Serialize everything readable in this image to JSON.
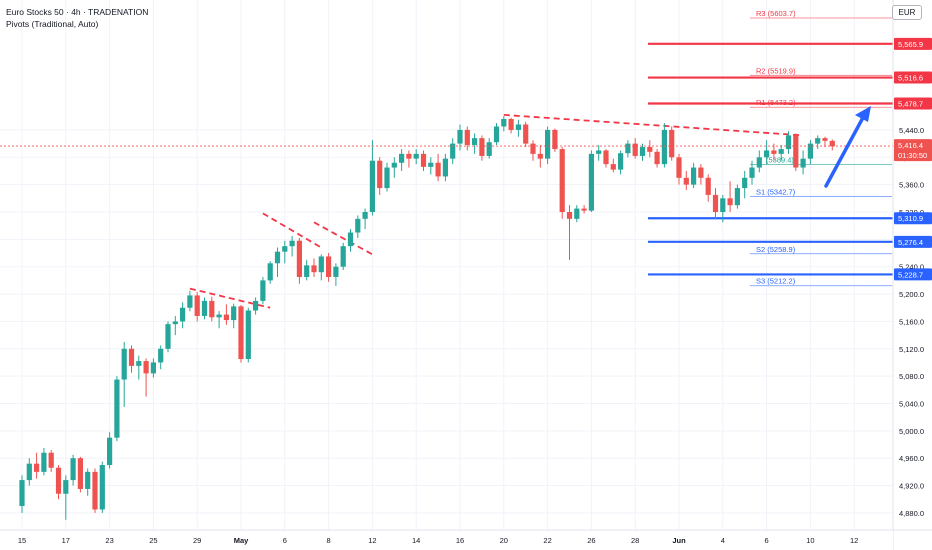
{
  "legend": {
    "symbol": "Euro Stocks 50 · 4h · TRADENATION",
    "indicator": "Pivots (Traditional, Auto)"
  },
  "currency": "EUR",
  "colors": {
    "up": "#26a69a",
    "down": "#ef5350",
    "resistance": "#f23645",
    "support": "#2962ff",
    "pivot_grey": "#9598a1",
    "price_line": "#ef5350",
    "arrow": "#2962ff",
    "axis_text": "#131722"
  },
  "chart_data": {
    "type": "candlestick",
    "ylim": [
      4855,
      5630
    ],
    "y_ticks": [
      "4,880.0",
      "4,920.0",
      "4,960.0",
      "5,000.0",
      "5,040.0",
      "5,080.0",
      "5,120.0",
      "5,160.0",
      "5,200.0",
      "5,240.0",
      "5,280.0",
      "5,320.0",
      "5,360.0",
      "5,400.0",
      "5,440.0"
    ],
    "y_tick_values": [
      4880,
      4920,
      4960,
      5000,
      5040,
      5080,
      5120,
      5160,
      5200,
      5240,
      5280,
      5320,
      5360,
      5400,
      5440
    ],
    "x_ticks": [
      {
        "label": "15",
        "i": 0
      },
      {
        "label": "17",
        "i": 6
      },
      {
        "label": "23",
        "i": 12
      },
      {
        "label": "25",
        "i": 18
      },
      {
        "label": "29",
        "i": 24
      },
      {
        "label": "May",
        "i": 30
      },
      {
        "label": "6",
        "i": 36
      },
      {
        "label": "8",
        "i": 42
      },
      {
        "label": "12",
        "i": 48
      },
      {
        "label": "14",
        "i": 54
      },
      {
        "label": "16",
        "i": 60
      },
      {
        "label": "20",
        "i": 66
      },
      {
        "label": "22",
        "i": 72
      },
      {
        "label": "26",
        "i": 78
      },
      {
        "label": "28",
        "i": 84
      },
      {
        "label": "Jun",
        "i": 90
      },
      {
        "label": "4",
        "i": 96
      },
      {
        "label": "6",
        "i": 102
      },
      {
        "label": "10",
        "i": 108
      },
      {
        "label": "12",
        "i": 114
      }
    ],
    "candles": [
      [
        4890,
        4935,
        4880,
        4928
      ],
      [
        4928,
        4960,
        4920,
        4952
      ],
      [
        4952,
        4968,
        4930,
        4940
      ],
      [
        4940,
        4975,
        4935,
        4968
      ],
      [
        4968,
        4972,
        4940,
        4946
      ],
      [
        4946,
        4950,
        4900,
        4908
      ],
      [
        4908,
        4935,
        4870,
        4928
      ],
      [
        4928,
        4965,
        4920,
        4960
      ],
      [
        4960,
        4962,
        4910,
        4915
      ],
      [
        4915,
        4945,
        4905,
        4940
      ],
      [
        4940,
        4945,
        4880,
        4885
      ],
      [
        4885,
        4955,
        4880,
        4950
      ],
      [
        4950,
        4998,
        4945,
        4990
      ],
      [
        4990,
        5080,
        4985,
        5075
      ],
      [
        5075,
        5130,
        5035,
        5120
      ],
      [
        5120,
        5125,
        5085,
        5095
      ],
      [
        5095,
        5110,
        5075,
        5102
      ],
      [
        5102,
        5106,
        5050,
        5084
      ],
      [
        5084,
        5106,
        5078,
        5100
      ],
      [
        5100,
        5125,
        5090,
        5120
      ],
      [
        5120,
        5160,
        5115,
        5156
      ],
      [
        5156,
        5168,
        5140,
        5160
      ],
      [
        5160,
        5188,
        5150,
        5180
      ],
      [
        5180,
        5205,
        5175,
        5198
      ],
      [
        5198,
        5203,
        5160,
        5168
      ],
      [
        5168,
        5195,
        5163,
        5190
      ],
      [
        5190,
        5196,
        5160,
        5166
      ],
      [
        5166,
        5175,
        5150,
        5170
      ],
      [
        5170,
        5185,
        5155,
        5162
      ],
      [
        5162,
        5186,
        5150,
        5182
      ],
      [
        5182,
        5184,
        5100,
        5105
      ],
      [
        5105,
        5180,
        5100,
        5176
      ],
      [
        5176,
        5195,
        5170,
        5190
      ],
      [
        5190,
        5225,
        5185,
        5220
      ],
      [
        5220,
        5248,
        5215,
        5245
      ],
      [
        5245,
        5268,
        5225,
        5262
      ],
      [
        5262,
        5278,
        5245,
        5270
      ],
      [
        5270,
        5285,
        5255,
        5278
      ],
      [
        5278,
        5282,
        5215,
        5225
      ],
      [
        5225,
        5250,
        5220,
        5242
      ],
      [
        5242,
        5252,
        5225,
        5232
      ],
      [
        5232,
        5258,
        5220,
        5255
      ],
      [
        5255,
        5260,
        5218,
        5225
      ],
      [
        5225,
        5245,
        5212,
        5240
      ],
      [
        5240,
        5275,
        5235,
        5270
      ],
      [
        5270,
        5295,
        5262,
        5290
      ],
      [
        5290,
        5315,
        5282,
        5310
      ],
      [
        5310,
        5325,
        5295,
        5320
      ],
      [
        5320,
        5425,
        5315,
        5395
      ],
      [
        5395,
        5400,
        5345,
        5355
      ],
      [
        5355,
        5392,
        5350,
        5385
      ],
      [
        5385,
        5400,
        5370,
        5392
      ],
      [
        5392,
        5412,
        5380,
        5405
      ],
      [
        5405,
        5410,
        5385,
        5398
      ],
      [
        5398,
        5412,
        5390,
        5405
      ],
      [
        5405,
        5410,
        5380,
        5386
      ],
      [
        5386,
        5400,
        5375,
        5392
      ],
      [
        5392,
        5405,
        5365,
        5372
      ],
      [
        5372,
        5405,
        5365,
        5398
      ],
      [
        5398,
        5428,
        5390,
        5420
      ],
      [
        5420,
        5448,
        5410,
        5440
      ],
      [
        5440,
        5445,
        5410,
        5418
      ],
      [
        5418,
        5435,
        5405,
        5428
      ],
      [
        5428,
        5432,
        5395,
        5402
      ],
      [
        5402,
        5428,
        5398,
        5422
      ],
      [
        5422,
        5450,
        5418,
        5445
      ],
      [
        5445,
        5460,
        5438,
        5456
      ],
      [
        5456,
        5458,
        5435,
        5440
      ],
      [
        5440,
        5455,
        5430,
        5448
      ],
      [
        5448,
        5452,
        5415,
        5420
      ],
      [
        5420,
        5425,
        5395,
        5405
      ],
      [
        5405,
        5418,
        5385,
        5398
      ],
      [
        5398,
        5445,
        5390,
        5440
      ],
      [
        5440,
        5442,
        5408,
        5412
      ],
      [
        5412,
        5415,
        5310,
        5320
      ],
      [
        5320,
        5330,
        5250,
        5310
      ],
      [
        5310,
        5330,
        5305,
        5325
      ],
      [
        5325,
        5330,
        5318,
        5322
      ],
      [
        5322,
        5410,
        5320,
        5405
      ],
      [
        5405,
        5418,
        5395,
        5410
      ],
      [
        5410,
        5412,
        5385,
        5390
      ],
      [
        5390,
        5398,
        5378,
        5382
      ],
      [
        5382,
        5410,
        5375,
        5406
      ],
      [
        5406,
        5425,
        5400,
        5420
      ],
      [
        5420,
        5428,
        5398,
        5402
      ],
      [
        5402,
        5420,
        5395,
        5415
      ],
      [
        5415,
        5425,
        5400,
        5408
      ],
      [
        5408,
        5412,
        5385,
        5390
      ],
      [
        5390,
        5450,
        5385,
        5440
      ],
      [
        5440,
        5445,
        5395,
        5400
      ],
      [
        5400,
        5405,
        5360,
        5370
      ],
      [
        5370,
        5380,
        5352,
        5360
      ],
      [
        5360,
        5392,
        5355,
        5385
      ],
      [
        5385,
        5390,
        5360,
        5370
      ],
      [
        5370,
        5375,
        5335,
        5345
      ],
      [
        5345,
        5355,
        5310,
        5320
      ],
      [
        5320,
        5345,
        5305,
        5340
      ],
      [
        5340,
        5365,
        5320,
        5330
      ],
      [
        5330,
        5360,
        5325,
        5355
      ],
      [
        5355,
        5380,
        5340,
        5370
      ],
      [
        5370,
        5395,
        5360,
        5385
      ],
      [
        5385,
        5410,
        5378,
        5400
      ],
      [
        5400,
        5425,
        5390,
        5410
      ],
      [
        5410,
        5420,
        5395,
        5405
      ],
      [
        5405,
        5418,
        5395,
        5412
      ],
      [
        5412,
        5438,
        5405,
        5432
      ],
      [
        5432,
        5435,
        5380,
        5385
      ],
      [
        5385,
        5410,
        5375,
        5398
      ],
      [
        5398,
        5425,
        5390,
        5420
      ],
      [
        5420,
        5432,
        5412,
        5428
      ],
      [
        5428,
        5430,
        5415,
        5424
      ],
      [
        5424,
        5426,
        5410,
        5416
      ]
    ],
    "pivots": [
      {
        "name": "R3",
        "value": 5603.7,
        "label": "R3 (5603.7)"
      },
      {
        "name": "R2",
        "value": 5519.9,
        "label": "R2 (5519.9)"
      },
      {
        "name": "R1",
        "value": 5473.2,
        "label": "R1 (5473.2)"
      },
      {
        "name": "P",
        "value": 5389.4,
        "label": "(5389.4)"
      },
      {
        "name": "S1",
        "value": 5342.7,
        "label": "S1 (5342.7)"
      },
      {
        "name": "S2",
        "value": 5258.9,
        "label": "S2 (5258.9)"
      },
      {
        "name": "S3",
        "value": 5212.2,
        "label": "S3 (5212.2)"
      }
    ],
    "resistance_levels": [
      5565.9,
      5516.6,
      5478.7
    ],
    "support_levels": [
      5310.9,
      5276.4,
      5228.7
    ],
    "trendlines": [
      {
        "from": [
          66,
          5462
        ],
        "to": [
          107,
          5432
        ]
      },
      {
        "from": [
          40,
          5305
        ],
        "to": [
          48,
          5258
        ]
      },
      {
        "from": [
          33,
          5318
        ],
        "to": [
          41,
          5268
        ]
      },
      {
        "from": [
          23,
          5208
        ],
        "to": [
          34,
          5180
        ]
      }
    ],
    "last_price": 5416.4,
    "last_price_label": "5,416.4",
    "countdown": "01:30:50",
    "level_badges": [
      "5,565.9",
      "5,516.6",
      "5,478.7",
      "5,310.9",
      "5,276.4",
      "5,228.7"
    ]
  }
}
